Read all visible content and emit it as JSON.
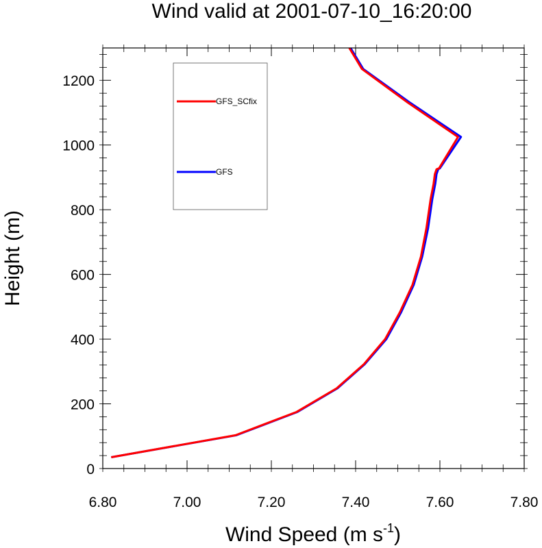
{
  "chart_data": {
    "type": "line",
    "title": "Wind valid at 2001-07-10_16:20:00",
    "xlabel": "Wind Speed (m s",
    "xlabel_superscript": "-1",
    "xlabel_suffix": ")",
    "ylabel": "Height (m)",
    "xlim": [
      6.8,
      7.8
    ],
    "ylim": [
      0,
      1300
    ],
    "xticks": [
      6.8,
      7.0,
      7.2,
      7.4,
      7.6,
      7.8
    ],
    "xtick_labels": [
      "6.80",
      "7.00",
      "7.20",
      "7.40",
      "7.60",
      "7.80"
    ],
    "yticks": [
      0,
      200,
      400,
      600,
      800,
      1000,
      1200
    ],
    "ytick_labels": [
      "0",
      "200",
      "400",
      "600",
      "800",
      "1000",
      "1200"
    ],
    "legend_position": "top-left",
    "series": [
      {
        "name": "GFS_SCfix",
        "color": "#ff0000",
        "x": [
          6.82,
          7.115,
          7.26,
          7.355,
          7.42,
          7.47,
          7.505,
          7.535,
          7.555,
          7.568,
          7.578,
          7.585,
          7.588,
          7.592,
          7.598,
          7.643,
          7.525,
          7.415,
          7.385
        ],
        "y": [
          35,
          103,
          175,
          248,
          323,
          400,
          483,
          568,
          655,
          743,
          833,
          880,
          910,
          925,
          928,
          1025,
          1130,
          1235,
          1300
        ]
      },
      {
        "name": "GFS",
        "color": "#0000ff",
        "x": [
          6.82,
          7.117,
          7.262,
          7.357,
          7.422,
          7.473,
          7.508,
          7.538,
          7.558,
          7.572,
          7.582,
          7.589,
          7.592,
          7.596,
          7.6,
          7.65,
          7.53,
          7.418,
          7.388
        ],
        "y": [
          35,
          103,
          175,
          248,
          323,
          400,
          483,
          568,
          655,
          743,
          833,
          880,
          910,
          925,
          928,
          1025,
          1130,
          1235,
          1300
        ]
      }
    ]
  }
}
